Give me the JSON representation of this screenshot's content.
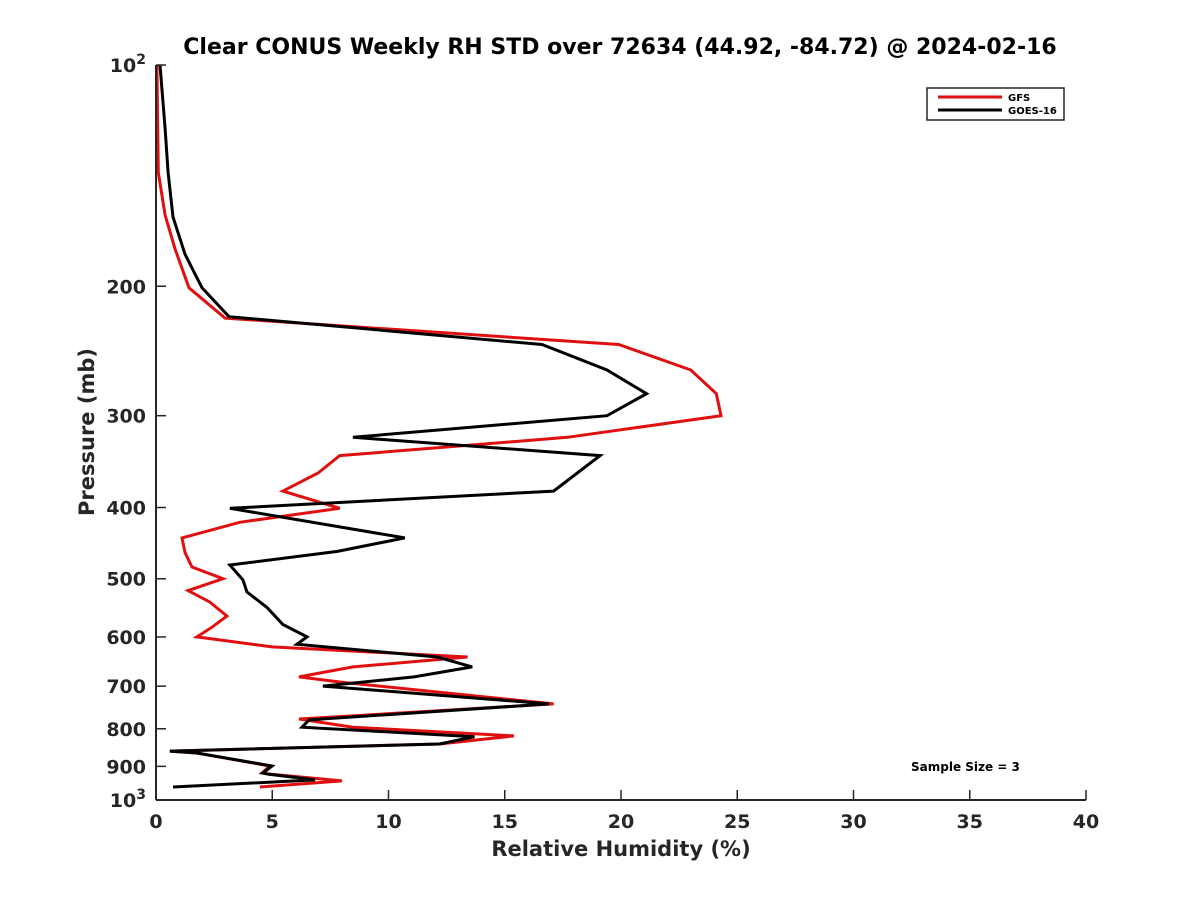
{
  "chart_data": {
    "type": "line",
    "title": "Clear CONUS Weekly RH STD over 72634 (44.92, -84.72) @ 2024-02-16",
    "xlabel": "Relative Humidity (%)",
    "ylabel": "Pressure (mb)",
    "xlim": [
      0,
      40
    ],
    "ylim": [
      100,
      1000
    ],
    "y_scale": "log",
    "y_reversed": true,
    "grid": false,
    "x_ticks": [
      0,
      5,
      10,
      15,
      20,
      25,
      30,
      35,
      40
    ],
    "x_tick_labels": [
      "0",
      "5",
      "10",
      "15",
      "20",
      "25",
      "30",
      "35",
      "40"
    ],
    "y_ticks": [
      100,
      200,
      300,
      400,
      500,
      600,
      700,
      800,
      900,
      1000
    ],
    "y_tick_labels": [
      "10^2",
      "200",
      "300",
      "400",
      "500",
      "600",
      "700",
      "800",
      "900",
      "10^3"
    ],
    "legend_placement": "top-right",
    "annotation": "Sample Size = 3",
    "series": [
      {
        "name": "GFS",
        "color": "#e01010",
        "pressure": [
          100,
          140,
          160,
          178,
          201,
          221,
          240,
          260,
          280,
          300,
          321,
          340,
          359,
          380,
          401,
          419,
          440,
          461,
          482,
          500,
          519,
          538,
          562,
          582,
          600,
          619,
          639,
          659,
          680,
          691,
          740,
          776,
          796,
          818,
          839,
          858,
          863,
          899,
          919,
          922,
          942,
          960
        ],
        "values": [
          0.04,
          0.1,
          0.39,
          0.82,
          1.42,
          2.97,
          19.9,
          23.0,
          24.1,
          24.3,
          17.7,
          7.9,
          6.97,
          5.46,
          7.9,
          3.6,
          1.12,
          1.25,
          1.55,
          2.88,
          1.38,
          2.32,
          3.05,
          2.41,
          1.76,
          4.99,
          13.4,
          8.47,
          6.15,
          7.9,
          17.1,
          6.15,
          8.47,
          15.4,
          12.2,
          0.6,
          1.76,
          4.9,
          4.56,
          4.9,
          8.0,
          4.47
        ]
      },
      {
        "name": "GOES-16",
        "color": "#000000",
        "pressure": [
          100,
          122,
          140,
          161,
          181,
          201,
          220,
          240,
          260,
          280,
          300,
          321,
          340,
          380,
          401,
          440,
          459,
          479,
          502,
          521,
          547,
          577,
          600,
          614,
          639,
          659,
          680,
          700,
          740,
          778,
          796,
          820,
          839,
          858,
          863,
          899,
          919,
          922,
          939,
          960
        ],
        "values": [
          0.17,
          0.39,
          0.52,
          0.73,
          1.25,
          1.98,
          3.14,
          16.6,
          19.4,
          21.1,
          19.4,
          8.47,
          19.1,
          17.1,
          3.18,
          10.7,
          7.8,
          3.18,
          3.74,
          3.91,
          4.77,
          5.46,
          6.5,
          6.06,
          12.1,
          13.6,
          11.1,
          7.18,
          16.9,
          6.58,
          6.28,
          13.7,
          12.2,
          0.6,
          1.76,
          4.99,
          4.6,
          4.82,
          6.84,
          0.73
        ]
      }
    ]
  }
}
